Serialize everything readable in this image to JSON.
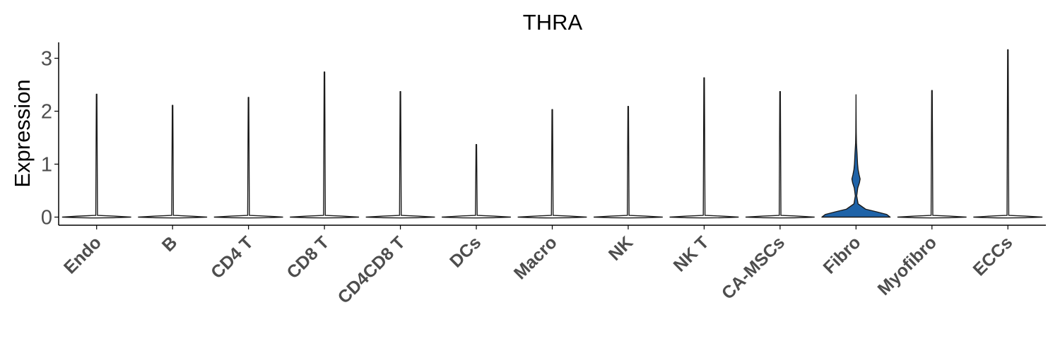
{
  "chart_data": {
    "type": "violin",
    "title": "THRA",
    "ylabel": "Expression",
    "xlabel": "",
    "ylim": [
      -0.15,
      3.3
    ],
    "yticks": [
      0,
      1,
      2,
      3
    ],
    "legend": "none",
    "grid": false,
    "fill_colors": {
      "default": "#ffffff",
      "Fibro": "#1f63a8"
    },
    "categories": [
      "Endo",
      "B",
      "CD4 T",
      "CD8 T",
      "CD4CD8 T",
      "DCs",
      "Macro",
      "NK",
      "NK T",
      "CA-MSCs",
      "Fibro",
      "Myofibro",
      "ECCs"
    ],
    "max_values": [
      2.32,
      2.11,
      2.26,
      2.74,
      2.37,
      1.37,
      2.03,
      2.09,
      2.63,
      2.37,
      2.31,
      2.39,
      3.16
    ],
    "density": {
      "Fibro": [
        [
          0.0,
          1.0
        ],
        [
          0.05,
          0.9
        ],
        [
          0.1,
          0.6
        ],
        [
          0.15,
          0.28
        ],
        [
          0.25,
          0.06
        ],
        [
          0.4,
          0.02
        ],
        [
          0.55,
          0.05
        ],
        [
          0.65,
          0.1
        ],
        [
          0.72,
          0.12
        ],
        [
          0.8,
          0.09
        ],
        [
          0.9,
          0.06
        ],
        [
          1.0,
          0.045
        ],
        [
          1.2,
          0.03
        ],
        [
          1.4,
          0.012
        ],
        [
          1.6,
          0.006
        ],
        [
          2.0,
          0.002
        ],
        [
          2.31,
          0.0
        ]
      ]
    }
  }
}
